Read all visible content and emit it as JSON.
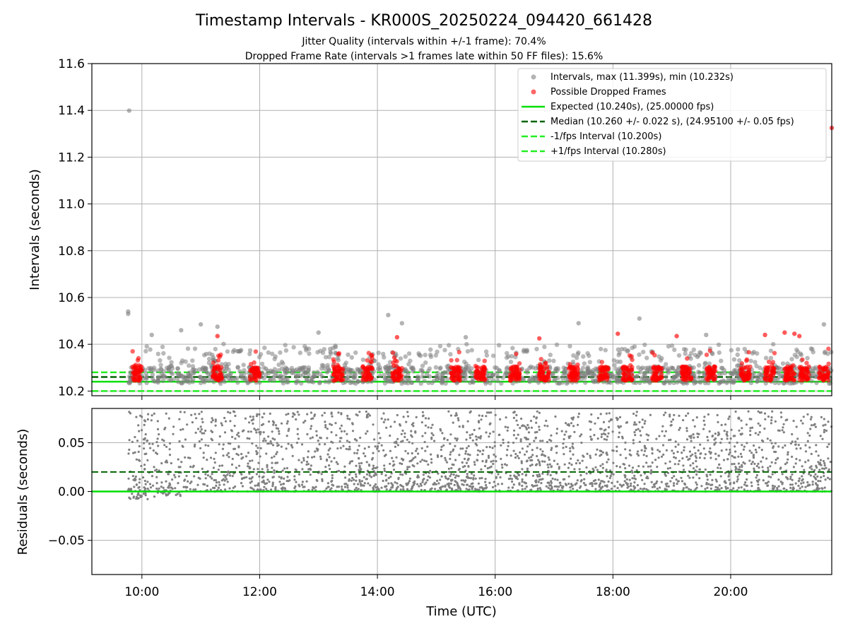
{
  "figure": {
    "title": "Timestamp Intervals - KR000S_20250224_094420_661428",
    "subtitle_1": "Jitter Quality (intervals within +/-1 frame): 70.4%",
    "subtitle_2": "Dropped Frame Rate (intervals >1 frames late within 50 FF files): 15.6%"
  },
  "colors": {
    "intervals": "#808080",
    "dropped": "#ff0000",
    "expected": "#00e000",
    "median": "#006400",
    "bound": "#22ee22",
    "grid": "#b0b0b0"
  },
  "chart_data": [
    {
      "type": "scatter",
      "ylabel": "Intervals (seconds)",
      "xlabel": "",
      "xlim": [
        "09:09",
        "21:43"
      ],
      "ylim": [
        10.18,
        11.6
      ],
      "x_ticks": [
        "10:00",
        "12:00",
        "14:00",
        "16:00",
        "18:00",
        "20:00"
      ],
      "y_ticks": [
        "10.2",
        "10.4",
        "10.6",
        "10.8",
        "11.0",
        "11.2",
        "11.4",
        "11.6"
      ],
      "grid": true,
      "legend_position": "top-right",
      "legend": [
        "Intervals, max (11.399s), min (10.232s)",
        "Possible Dropped Frames",
        "Expected (10.240s), (25.00000 fps)",
        "Median (10.260 +/- 0.022 s), (24.95100 +/- 0.05 fps)",
        "-1/fps Interval (10.200s)",
        "+1/fps Interval (10.280s)"
      ],
      "reference_lines": {
        "expected": 10.24,
        "median": 10.26,
        "minus_1_fps": 10.2,
        "plus_1_fps": 10.28
      },
      "series": [
        {
          "name": "Intervals, max (11.399s), min (10.232s)",
          "points": [
            [
              "09:47",
              11.399
            ],
            [
              "09:46",
              10.54
            ],
            [
              "09:46",
              10.53
            ],
            [
              "10:40",
              10.46
            ],
            [
              "11:00",
              10.485
            ],
            [
              "11:17",
              10.475
            ],
            [
              "14:11",
              10.525
            ],
            [
              "14:25",
              10.49
            ],
            [
              "17:25",
              10.49
            ],
            [
              "18:27",
              10.51
            ],
            [
              "21:35",
              10.485
            ],
            [
              "13:00",
              10.45
            ],
            [
              "15:30",
              10.43
            ],
            [
              "19:35",
              10.44
            ],
            [
              "10:10",
              10.44
            ]
          ],
          "band": [
            10.232,
            10.4
          ]
        },
        {
          "name": "Possible Dropped Frames",
          "points": [
            [
              "21:43",
              11.325
            ],
            [
              "11:17",
              10.435
            ],
            [
              "14:20",
              10.43
            ],
            [
              "16:45",
              10.425
            ],
            [
              "18:05",
              10.445
            ],
            [
              "19:05",
              10.435
            ],
            [
              "20:35",
              10.44
            ],
            [
              "20:55",
              10.45
            ],
            [
              "21:05",
              10.445
            ],
            [
              "21:10",
              10.435
            ]
          ],
          "clusters": [
            "09:55",
            "11:17",
            "11:55",
            "13:20",
            "13:50",
            "14:20",
            "15:20",
            "15:45",
            "16:20",
            "16:50",
            "17:20",
            "17:50",
            "18:15",
            "18:45",
            "19:15",
            "19:40",
            "20:15",
            "20:40",
            "21:00",
            "21:15",
            "21:35"
          ]
        }
      ]
    },
    {
      "type": "scatter",
      "ylabel": "Residuals (seconds)",
      "xlabel": "Time (UTC)",
      "xlim": [
        "09:09",
        "21:43"
      ],
      "ylim": [
        -0.085,
        0.085
      ],
      "x_ticks": [
        "10:00",
        "12:00",
        "14:00",
        "16:00",
        "18:00",
        "20:00"
      ],
      "y_ticks": [
        "−0.05",
        "0.00",
        "0.05"
      ],
      "grid": true,
      "reference_lines": {
        "zero": 0.0,
        "median_offset": 0.02
      },
      "series": [
        {
          "name": "",
          "x_range": [
            "09:46",
            "21:43"
          ],
          "band": [
            -0.008,
            0.08
          ]
        }
      ]
    }
  ]
}
